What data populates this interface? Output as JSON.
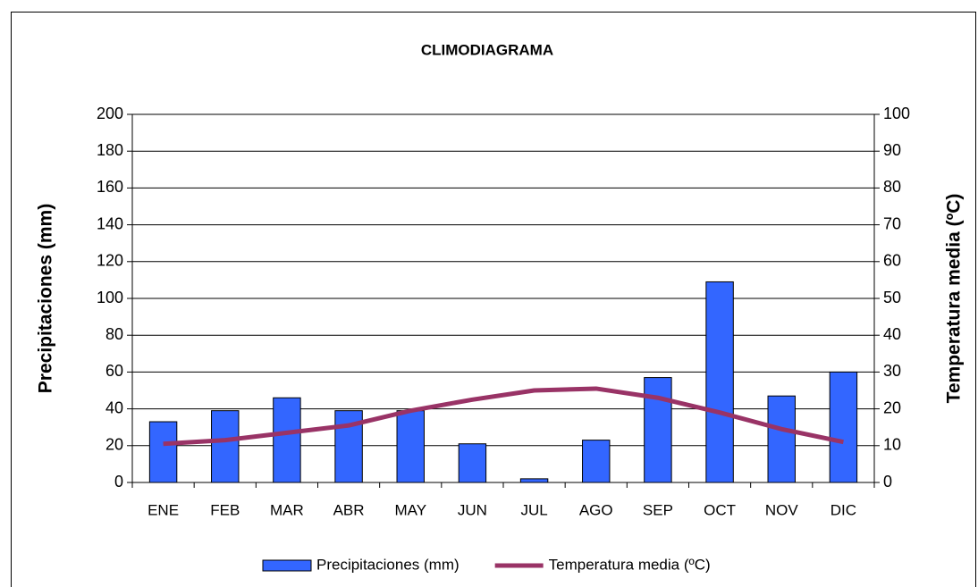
{
  "chart_data": {
    "type": "bar+line",
    "title": "CLIMODIAGRAMA",
    "y_label": "Precipitaciones (mm)",
    "y2_label": "Temperatura media (ºC)",
    "categories": [
      "ENE",
      "FEB",
      "MAR",
      "ABR",
      "MAY",
      "JUN",
      "JUL",
      "AGO",
      "SEP",
      "OCT",
      "NOV",
      "DIC"
    ],
    "series": [
      {
        "name": "Precipitaciones (mm)",
        "type": "bar",
        "color": "#3366ff",
        "values": [
          33,
          39,
          46,
          39,
          39,
          21,
          2,
          23,
          57,
          109,
          47,
          60
        ]
      },
      {
        "name": "Temperatura media (ºC)",
        "type": "line",
        "axis": "y2",
        "color": "#993366",
        "values": [
          10.5,
          11.5,
          13.5,
          15.5,
          19.5,
          22.5,
          25,
          25.5,
          23,
          19,
          14.5,
          11
        ]
      }
    ],
    "ylim": [
      0,
      200
    ],
    "yticks": [
      0,
      20,
      40,
      60,
      80,
      100,
      120,
      140,
      160,
      180,
      200
    ],
    "y2lim": [
      0,
      100
    ],
    "y2ticks": [
      0,
      10,
      20,
      30,
      40,
      50,
      60,
      70,
      80,
      90,
      100
    ],
    "grid": true,
    "legend": "bottom"
  }
}
